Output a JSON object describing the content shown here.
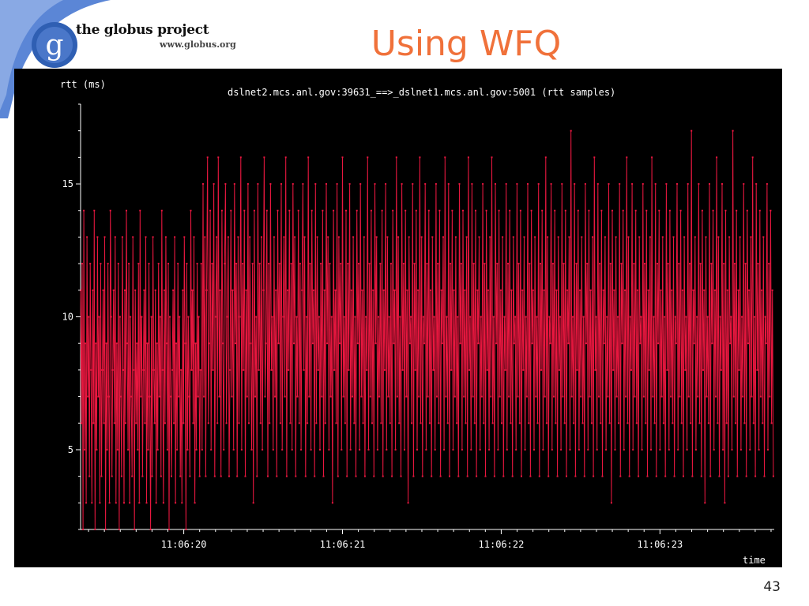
{
  "slide": {
    "logo_text": "the globus project",
    "logo_url": "www.globus.org",
    "logo_letter": "g",
    "title": "Using WFQ",
    "page_number": "43",
    "title_color": "#f0713a",
    "accent_color": "#5b86d6"
  },
  "chart_data": {
    "type": "line",
    "title": "dslnet2.mcs.anl.gov:39631_==>_dslnet1.mcs.anl.gov:5001 (rtt samples)",
    "xlabel": "time",
    "ylabel": "rtt (ms)",
    "x_ticks": [
      "11:06:20",
      "11:06:21",
      "11:06:22",
      "11:06:23"
    ],
    "x_range_seconds": [
      19.35,
      23.72
    ],
    "y_ticks": [
      5,
      10,
      15
    ],
    "ylim": [
      2,
      18
    ],
    "grid": false,
    "line_color": "#e8173f",
    "series": [
      {
        "segments": [
          {
            "start_s": 19.35,
            "end_s": 20.11,
            "values": [
              11,
              6,
              12,
              2,
              14,
              5,
              9,
              3,
              13,
              7,
              10,
              4,
              12,
              8,
              3,
              11,
              6,
              14,
              2,
              9,
              5,
              13,
              7,
              10,
              3,
              12,
              4,
              8,
              11,
              6,
              13,
              2,
              9,
              5,
              12,
              7,
              3,
              14,
              10,
              4,
              8,
              11,
              6,
              13,
              3,
              9,
              5,
              12,
              2,
              10,
              7,
              4,
              13,
              8,
              3,
              11,
              6,
              14,
              9,
              5,
              12,
              3,
              10,
              7,
              4,
              13,
              8,
              2,
              11,
              6,
              9,
              5,
              12,
              3,
              14,
              7,
              10,
              4,
              8,
              11,
              6,
              13,
              3,
              9,
              5,
              12,
              7,
              2,
              10,
              4,
              13,
              8,
              6,
              11,
              3,
              9,
              5,
              12,
              7,
              10,
              4,
              14,
              8,
              3,
              11,
              6,
              13,
              9,
              5,
              12,
              2,
              10,
              7,
              4,
              8,
              11,
              6,
              13,
              3,
              9,
              5,
              12,
              7,
              10,
              4,
              8,
              3,
              11,
              6,
              13,
              9,
              2,
              12,
              5,
              10,
              7,
              4,
              14,
              8,
              11,
              6,
              13,
              3,
              9,
              5,
              12,
              7,
              10,
              4,
              8
            ]
          },
          {
            "start_s": 20.11,
            "end_s": 23.72,
            "values": [
              12,
              5,
              15,
              7,
              13,
              4,
              11,
              16,
              6,
              9,
              14,
              5,
              12,
              8,
              15,
              4,
              10,
              13,
              6,
              16,
              7,
              11,
              4,
              14,
              9,
              5,
              12,
              15,
              6,
              10,
              13,
              4,
              8,
              14,
              7,
              11,
              5,
              15,
              9,
              12,
              4,
              13,
              6,
              10,
              16,
              5,
              12,
              8,
              14,
              4,
              11,
              7,
              15,
              6,
              13,
              9,
              5,
              12,
              3,
              14,
              7,
              10,
              4,
              15,
              8,
              12,
              6,
              13,
              5,
              11,
              16,
              7,
              9,
              14,
              4,
              12,
              6,
              15,
              8,
              10,
              5,
              13,
              7,
              11,
              4,
              14,
              9,
              12,
              6,
              15,
              5,
              10,
              13,
              7,
              16,
              4,
              11,
              8,
              14,
              6,
              12,
              5,
              15,
              9,
              13,
              4,
              10,
              7,
              14,
              6,
              12,
              5,
              11,
              15,
              8,
              13,
              4,
              10,
              6,
              16,
              7,
              12,
              5,
              14,
              9,
              11,
              4,
              15,
              6,
              13,
              8,
              10,
              5,
              12,
              7,
              14,
              4,
              11,
              6,
              15,
              9,
              13,
              5,
              12,
              7,
              10,
              3,
              14,
              8,
              11,
              6,
              15,
              4,
              13,
              9,
              12,
              5,
              16,
              7,
              10,
              6,
              14,
              4,
              12,
              8,
              15,
              5,
              11,
              7,
              13,
              6,
              10,
              4,
              14,
              9,
              12,
              5,
              15,
              7,
              11,
              6,
              13,
              4,
              10,
              8,
              16,
              5,
              12,
              7,
              14,
              6,
              11,
              4,
              15,
              9,
              13,
              5,
              10,
              7,
              12,
              6,
              14,
              4,
              11,
              8,
              15,
              5,
              13,
              7,
              10,
              6,
              12,
              4,
              14,
              9,
              11,
              5,
              16,
              7,
              13,
              6,
              10,
              4,
              15,
              8,
              12,
              5,
              14,
              7,
              11,
              3,
              13,
              9,
              10,
              6,
              15,
              4,
              12,
              8,
              14,
              5,
              11,
              7,
              16,
              6,
              13,
              4,
              10,
              9,
              15,
              5,
              12,
              7,
              14,
              6,
              11,
              4,
              13,
              8,
              10,
              5,
              15,
              7,
              12,
              6,
              14,
              4,
              11,
              9,
              13,
              5,
              16,
              7,
              10,
              6,
              15,
              4,
              12,
              8,
              14,
              5,
              11,
              7,
              13,
              6,
              10,
              4,
              15,
              9,
              12,
              5,
              14,
              7,
              11,
              6,
              13,
              4,
              16,
              8,
              10,
              5,
              15,
              7,
              12,
              6,
              14,
              4,
              11,
              9,
              13,
              5,
              10,
              7,
              15,
              6,
              12,
              4,
              14,
              8,
              11,
              5,
              13,
              7,
              16,
              6,
              10,
              4,
              15,
              9,
              12,
              5,
              14,
              7,
              11,
              6,
              13,
              4,
              10,
              8,
              15,
              5,
              12,
              7,
              14,
              6,
              11,
              4,
              13,
              9,
              10,
              5,
              15,
              7,
              12,
              6,
              14,
              4,
              11,
              8,
              13,
              5,
              10,
              7,
              15,
              6,
              12,
              4,
              14,
              9,
              11,
              5,
              13,
              7,
              10,
              6,
              15,
              4,
              12,
              8,
              14,
              5,
              11,
              7,
              16,
              6,
              13,
              4,
              10,
              9,
              15,
              5,
              12,
              7,
              14,
              6,
              11,
              4,
              13,
              8,
              10,
              5,
              15,
              7,
              12,
              6,
              14,
              4,
              11,
              9,
              13,
              5,
              17,
              7,
              10,
              6,
              15,
              4,
              12,
              8,
              14,
              5,
              11,
              7,
              13,
              6,
              10,
              4,
              15,
              9,
              12,
              5,
              14,
              7,
              11,
              6,
              13,
              4,
              16,
              8,
              10,
              5,
              15,
              7,
              12,
              6,
              14,
              4,
              11,
              9,
              13,
              5,
              10,
              7,
              15,
              6,
              12,
              3,
              14,
              8,
              11,
              5,
              13,
              7,
              10,
              6,
              15,
              4,
              12,
              9,
              14,
              5,
              11,
              7,
              16,
              6,
              13,
              4,
              10,
              8,
              15,
              5,
              12,
              7,
              14,
              6,
              11,
              4,
              13,
              9,
              10,
              5,
              15,
              7,
              12,
              6,
              14,
              4,
              11,
              8,
              13,
              5,
              16,
              7,
              10,
              6,
              15,
              4,
              12,
              9,
              14,
              5,
              11,
              7,
              13,
              6,
              10,
              4,
              15,
              8,
              12,
              5,
              14,
              7,
              11,
              6,
              13,
              4,
              10,
              9,
              15,
              5,
              12,
              7,
              14,
              6,
              11,
              4,
              13,
              8,
              10,
              5,
              15,
              7,
              12,
              6,
              17,
              4,
              11,
              9,
              13,
              5,
              10,
              7,
              15,
              6,
              12,
              4,
              14,
              8,
              11,
              3,
              13,
              7,
              10,
              6,
              15,
              4,
              12,
              9,
              14,
              5,
              11,
              7,
              16,
              6,
              13,
              4,
              10,
              8,
              15,
              5,
              12,
              3,
              14,
              6,
              11,
              4,
              13,
              9,
              10,
              5,
              17,
              7,
              12,
              6,
              14,
              4,
              11,
              8,
              13,
              5,
              10,
              7,
              15,
              6,
              12,
              4,
              14,
              9,
              11,
              5,
              13,
              7,
              16,
              6,
              10,
              4,
              15,
              8,
              12,
              5,
              14,
              7,
              11,
              6,
              13,
              4,
              10,
              9,
              15,
              5,
              12,
              7,
              14,
              6,
              11,
              4
            ]
          }
        ]
      }
    ]
  }
}
